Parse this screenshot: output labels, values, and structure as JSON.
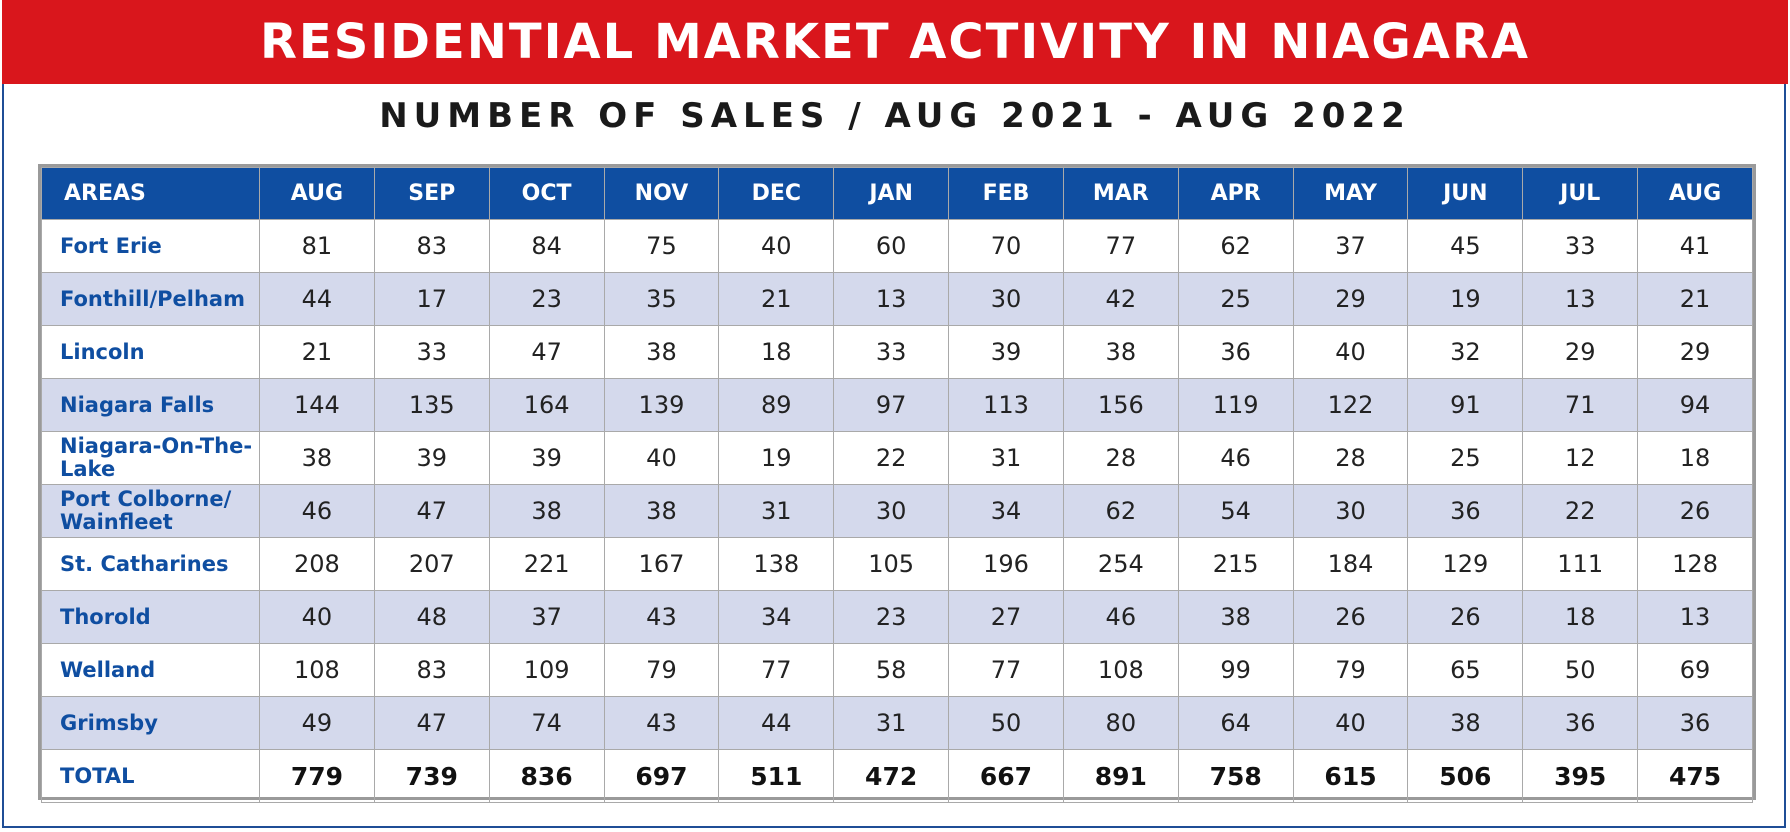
{
  "header": {
    "title": "RESIDENTIAL MARKET ACTIVITY IN NIAGARA",
    "subtitle": "NUMBER OF SALES / AUG 2021 - AUG 2022"
  },
  "colors": {
    "banner": "#d9161c",
    "header_row": "#0f4ea1",
    "alt_row": "#d4d9ec",
    "area_text": "#0f4ea1"
  },
  "chart_data": {
    "type": "table",
    "title": "RESIDENTIAL MARKET ACTIVITY IN NIAGARA",
    "subtitle": "NUMBER OF SALES / AUG 2021 - AUG 2022",
    "columns": [
      "AREAS",
      "AUG",
      "SEP",
      "OCT",
      "NOV",
      "DEC",
      "JAN",
      "FEB",
      "MAR",
      "APR",
      "MAY",
      "JUN",
      "JUL",
      "AUG"
    ],
    "rows": [
      {
        "area": "Fort Erie",
        "values": [
          81,
          83,
          84,
          75,
          40,
          60,
          70,
          77,
          62,
          37,
          45,
          33,
          41
        ]
      },
      {
        "area": "Fonthill/Pelham",
        "values": [
          44,
          17,
          23,
          35,
          21,
          13,
          30,
          42,
          25,
          29,
          19,
          13,
          21
        ]
      },
      {
        "area": "Lincoln",
        "values": [
          21,
          33,
          47,
          38,
          18,
          33,
          39,
          38,
          36,
          40,
          32,
          29,
          29
        ]
      },
      {
        "area": "Niagara Falls",
        "values": [
          144,
          135,
          164,
          139,
          89,
          97,
          113,
          156,
          119,
          122,
          91,
          71,
          94
        ]
      },
      {
        "area": "Niagara-On-The-Lake",
        "values": [
          38,
          39,
          39,
          40,
          19,
          22,
          31,
          28,
          46,
          28,
          25,
          12,
          18
        ]
      },
      {
        "area": "Port Colborne/ Wainfleet",
        "values": [
          46,
          47,
          38,
          38,
          31,
          30,
          34,
          62,
          54,
          30,
          36,
          22,
          26
        ]
      },
      {
        "area": "St. Catharines",
        "values": [
          208,
          207,
          221,
          167,
          138,
          105,
          196,
          254,
          215,
          184,
          129,
          111,
          128
        ]
      },
      {
        "area": "Thorold",
        "values": [
          40,
          48,
          37,
          43,
          34,
          23,
          27,
          46,
          38,
          26,
          26,
          18,
          13
        ]
      },
      {
        "area": "Welland",
        "values": [
          108,
          83,
          109,
          79,
          77,
          58,
          77,
          108,
          99,
          79,
          65,
          50,
          69
        ]
      },
      {
        "area": "Grimsby",
        "values": [
          49,
          47,
          74,
          43,
          44,
          31,
          50,
          80,
          64,
          40,
          38,
          36,
          36
        ]
      }
    ],
    "total": {
      "area": "TOTAL",
      "values": [
        779,
        739,
        836,
        697,
        511,
        472,
        667,
        891,
        758,
        615,
        506,
        395,
        475
      ]
    }
  }
}
